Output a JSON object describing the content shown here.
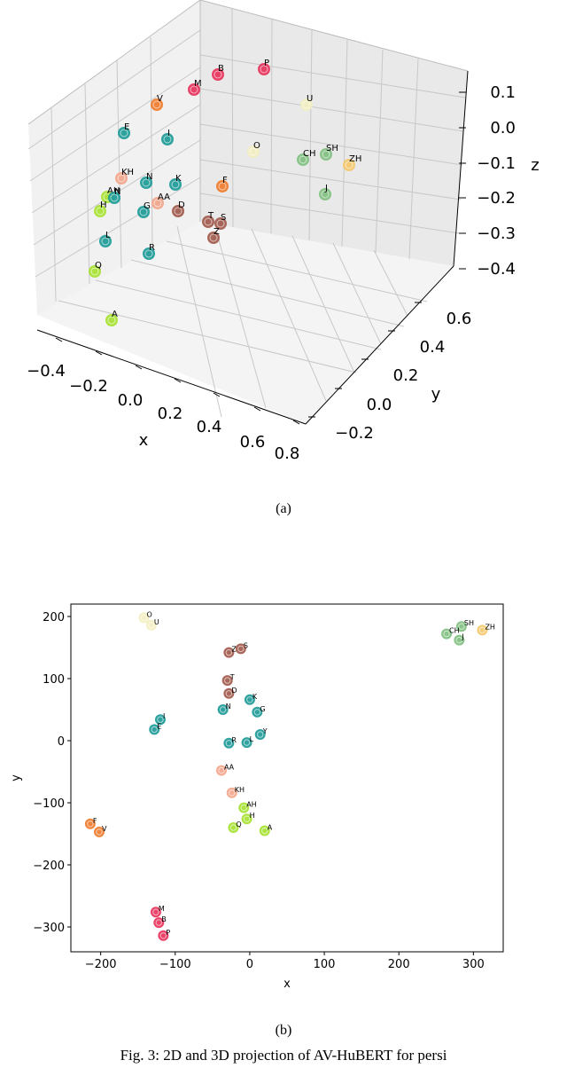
{
  "figure": {
    "sub_a": "(a)",
    "sub_b": "(b)",
    "caption": "Fig. 3: 2D and 3D projection of AV-HuBERT for persi"
  },
  "colors": {
    "lime": "#a6e22e",
    "teal": "#1a9a96",
    "salmon": "#f4a58a",
    "brown": "#a0584a",
    "orange": "#f07a2a",
    "crimson": "#e8305a",
    "cream": "#f3efc0",
    "sage": "#7fbf7f",
    "gold": "#f5c76a"
  },
  "chart_data": [
    {
      "type": "scatter",
      "projection": "3d",
      "xlabel": "x",
      "ylabel": "y",
      "zlabel": "z",
      "x_ticks": [
        "−0.4",
        "−0.2",
        "0.0",
        "0.2",
        "0.4",
        "0.6",
        "0.8"
      ],
      "y_ticks": [
        "−0.2",
        "0.0",
        "0.2",
        "0.4",
        "0.6"
      ],
      "z_ticks": [
        "0.1",
        "0.0",
        "−0.1",
        "−0.2",
        "−0.3",
        "−0.4"
      ],
      "grid": true,
      "points": [
        {
          "label": "P",
          "color": "crimson"
        },
        {
          "label": "B",
          "color": "crimson"
        },
        {
          "label": "M",
          "color": "crimson"
        },
        {
          "label": "V",
          "color": "orange"
        },
        {
          "label": "U",
          "color": "cream"
        },
        {
          "label": "E",
          "color": "teal"
        },
        {
          "label": "I",
          "color": "teal"
        },
        {
          "label": "O",
          "color": "cream"
        },
        {
          "label": "CH",
          "color": "sage"
        },
        {
          "label": "SH",
          "color": "sage"
        },
        {
          "label": "ZH",
          "color": "gold"
        },
        {
          "label": "KH",
          "color": "salmon"
        },
        {
          "label": "N",
          "color": "teal"
        },
        {
          "label": "K",
          "color": "teal"
        },
        {
          "label": "F",
          "color": "orange"
        },
        {
          "label": "AH",
          "color": "lime"
        },
        {
          "label": "N",
          "color": "teal"
        },
        {
          "label": "AA",
          "color": "salmon"
        },
        {
          "label": "G",
          "color": "teal"
        },
        {
          "label": "D",
          "color": "brown"
        },
        {
          "label": "J",
          "color": "sage"
        },
        {
          "label": "H",
          "color": "lime"
        },
        {
          "label": "T",
          "color": "brown"
        },
        {
          "label": "S",
          "color": "brown"
        },
        {
          "label": "Z",
          "color": "brown"
        },
        {
          "label": "L",
          "color": "teal"
        },
        {
          "label": "R",
          "color": "teal"
        },
        {
          "label": "Q",
          "color": "lime"
        },
        {
          "label": "A",
          "color": "lime"
        }
      ]
    },
    {
      "type": "scatter",
      "xlabel": "x",
      "ylabel": "y",
      "xlim": [
        -240,
        340
      ],
      "ylim": [
        -340,
        220
      ],
      "x_ticks": [
        -200,
        -100,
        0,
        100,
        200,
        300
      ],
      "y_ticks": [
        200,
        100,
        0,
        -100,
        -200,
        -300
      ],
      "tick_labels_x": [
        "−200",
        "−100",
        "0",
        "100",
        "200",
        "300"
      ],
      "tick_labels_y": [
        "200",
        "100",
        "0",
        "−100",
        "−200",
        "−300"
      ],
      "grid": false,
      "points": [
        {
          "label": "O",
          "x": -142,
          "y": 198,
          "color": "cream"
        },
        {
          "label": "U",
          "x": -132,
          "y": 186,
          "color": "cream"
        },
        {
          "label": "SH",
          "x": 284,
          "y": 184,
          "color": "sage"
        },
        {
          "label": "ZH",
          "x": 312,
          "y": 178,
          "color": "gold"
        },
        {
          "label": "CH",
          "x": 264,
          "y": 172,
          "color": "sage"
        },
        {
          "label": "J",
          "x": 281,
          "y": 162,
          "color": "sage"
        },
        {
          "label": "Z",
          "x": -28,
          "y": 142,
          "color": "brown"
        },
        {
          "label": "S",
          "x": -12,
          "y": 148,
          "color": "brown"
        },
        {
          "label": "T",
          "x": -30,
          "y": 97,
          "color": "brown"
        },
        {
          "label": "D",
          "x": -28,
          "y": 76,
          "color": "brown"
        },
        {
          "label": "K",
          "x": 0,
          "y": 66,
          "color": "teal"
        },
        {
          "label": "N",
          "x": -36,
          "y": 50,
          "color": "teal"
        },
        {
          "label": "G",
          "x": 10,
          "y": 46,
          "color": "teal"
        },
        {
          "label": "I",
          "x": -120,
          "y": 34,
          "color": "teal"
        },
        {
          "label": "E",
          "x": -128,
          "y": 18,
          "color": "teal"
        },
        {
          "label": "Y",
          "x": 14,
          "y": 10,
          "color": "teal"
        },
        {
          "label": "R",
          "x": -28,
          "y": -4,
          "color": "teal"
        },
        {
          "label": "L",
          "x": -4,
          "y": -3,
          "color": "teal"
        },
        {
          "label": "AA",
          "x": -38,
          "y": -48,
          "color": "salmon"
        },
        {
          "label": "KH",
          "x": -24,
          "y": -84,
          "color": "salmon"
        },
        {
          "label": "AH",
          "x": -8,
          "y": -108,
          "color": "lime"
        },
        {
          "label": "H",
          "x": -4,
          "y": -126,
          "color": "lime"
        },
        {
          "label": "F",
          "x": -214,
          "y": -134,
          "color": "orange"
        },
        {
          "label": "Q",
          "x": -22,
          "y": -140,
          "color": "lime"
        },
        {
          "label": "A",
          "x": 20,
          "y": -145,
          "color": "lime"
        },
        {
          "label": "V",
          "x": -202,
          "y": -147,
          "color": "orange"
        },
        {
          "label": "M",
          "x": -126,
          "y": -276,
          "color": "crimson"
        },
        {
          "label": "B",
          "x": -122,
          "y": -293,
          "color": "crimson"
        },
        {
          "label": "P",
          "x": -116,
          "y": -314,
          "color": "crimson"
        }
      ]
    }
  ]
}
